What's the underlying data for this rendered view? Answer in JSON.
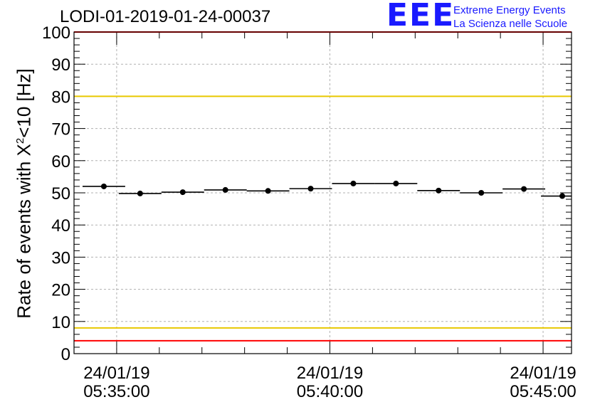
{
  "chart_data": {
    "type": "scatter",
    "title": "LODI-01-2019-01-24-00037",
    "ylabel_main": "Rate of events with X",
    "ylabel_sup": "2",
    "ylabel_rest": "<10 [Hz]",
    "ylim": [
      0,
      100
    ],
    "yticks": [
      0,
      10,
      20,
      30,
      40,
      50,
      60,
      70,
      80,
      90,
      100
    ],
    "xlim_seconds": [
      -60,
      640
    ],
    "xticks": [
      {
        "t": 0,
        "date": "24/01/19",
        "time": "05:35:00"
      },
      {
        "t": 300,
        "date": "24/01/19",
        "time": "05:40:00"
      },
      {
        "t": 600,
        "date": "24/01/19",
        "time": "05:45:00"
      }
    ],
    "bin_width_seconds": 60,
    "series": [
      {
        "name": "rate",
        "points": [
          {
            "t": -18,
            "y": 52.0
          },
          {
            "t": 33,
            "y": 49.8
          },
          {
            "t": 93,
            "y": 50.2
          },
          {
            "t": 153,
            "y": 50.9
          },
          {
            "t": 213,
            "y": 50.6
          },
          {
            "t": 273,
            "y": 51.3
          },
          {
            "t": 333,
            "y": 52.9
          },
          {
            "t": 393,
            "y": 52.9
          },
          {
            "t": 453,
            "y": 50.7
          },
          {
            "t": 513,
            "y": 50.0
          },
          {
            "t": 573,
            "y": 51.2
          },
          {
            "t": 627,
            "y": 49.0
          }
        ]
      }
    ],
    "reference_lines": [
      {
        "y": 100,
        "color": "#ff0000"
      },
      {
        "y": 80,
        "color": "#e8c800"
      },
      {
        "y": 8,
        "color": "#e8c800"
      },
      {
        "y": 4,
        "color": "#ff0000"
      }
    ]
  },
  "logo": {
    "mark": "EEE",
    "line1": "Extreme Energy Events",
    "line2": "La Scienza nelle Scuole"
  },
  "colors": {
    "logo": "#1a1aff",
    "grid": "#b0b0b0"
  }
}
